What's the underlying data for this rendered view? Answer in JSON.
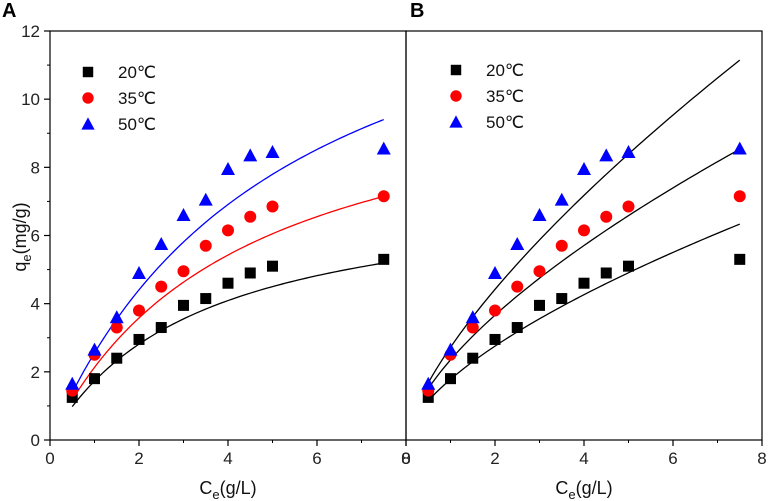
{
  "chart_data": [
    {
      "type": "scatter",
      "panel_label": "A",
      "xlabel": {
        "main": "C",
        "sub": "e",
        "rest": "(g/L)"
      },
      "ylabel": {
        "main": "q",
        "sub": "e",
        "rest": "(mg/g)"
      },
      "xlim": [
        0,
        8
      ],
      "ylim": [
        0,
        12
      ],
      "x_ticks": [
        "0",
        "2",
        "4",
        "6",
        "8"
      ],
      "y_ticks": [
        "0",
        "2",
        "4",
        "6",
        "8",
        "10",
        "12"
      ],
      "legend_position": "top-left",
      "series": [
        {
          "name": "20℃",
          "marker": "square",
          "color": "#000000",
          "fit_color": "#000000",
          "x": [
            0.5,
            1.0,
            1.5,
            2.0,
            2.5,
            3.0,
            3.5,
            4.0,
            4.5,
            5.0,
            7.5
          ],
          "y": [
            1.25,
            1.8,
            2.4,
            2.95,
            3.3,
            3.95,
            4.15,
            4.6,
            4.9,
            5.1,
            5.3
          ],
          "fit": {
            "model": "langmuir",
            "qm": 7.5,
            "k": 0.3
          }
        },
        {
          "name": "35℃",
          "marker": "circle",
          "color": "#ff0000",
          "fit_color": "#ff0000",
          "x": [
            0.5,
            1.0,
            1.5,
            2.0,
            2.5,
            3.0,
            3.5,
            4.0,
            4.5,
            5.0,
            7.5
          ],
          "y": [
            1.45,
            2.5,
            3.3,
            3.8,
            4.5,
            4.95,
            5.7,
            6.15,
            6.55,
            6.85,
            7.15
          ],
          "fit": {
            "model": "langmuir",
            "qm": 11.2,
            "k": 0.235
          }
        },
        {
          "name": "50℃",
          "marker": "triangle",
          "color": "#0000ff",
          "fit_color": "#0000ff",
          "x": [
            0.5,
            1.0,
            1.5,
            2.0,
            2.5,
            3.0,
            3.5,
            4.0,
            4.5,
            5.0,
            7.5
          ],
          "y": [
            1.65,
            2.65,
            3.6,
            4.9,
            5.75,
            6.6,
            7.05,
            7.95,
            8.35,
            8.45,
            8.55
          ],
          "fit": {
            "model": "langmuir",
            "qm": 16.0,
            "k": 0.19
          }
        }
      ]
    },
    {
      "type": "scatter",
      "panel_label": "B",
      "xlabel": {
        "main": "C",
        "sub": "e",
        "rest": "(g/L)"
      },
      "xlim": [
        0,
        8
      ],
      "ylim": [
        0,
        12
      ],
      "x_ticks": [
        "0",
        "2",
        "4",
        "6",
        "8"
      ],
      "legend_position": "top-left",
      "series": [
        {
          "name": "20℃",
          "marker": "square",
          "color": "#000000",
          "fit_color": "#000000",
          "x": [
            0.5,
            1.0,
            1.5,
            2.0,
            2.5,
            3.0,
            3.5,
            4.0,
            4.5,
            5.0,
            7.5
          ],
          "y": [
            1.25,
            1.8,
            2.4,
            2.95,
            3.3,
            3.95,
            4.15,
            4.6,
            4.9,
            5.1,
            5.3
          ],
          "fit": {
            "model": "freundlich",
            "kf": 1.78,
            "n": 0.63
          }
        },
        {
          "name": "35℃",
          "marker": "circle",
          "color": "#ff0000",
          "fit_color": "#000000",
          "x": [
            0.5,
            1.0,
            1.5,
            2.0,
            2.5,
            3.0,
            3.5,
            4.0,
            4.5,
            5.0,
            7.5
          ],
          "y": [
            1.45,
            2.5,
            3.3,
            3.8,
            4.5,
            4.95,
            5.7,
            6.15,
            6.55,
            6.85,
            7.15
          ],
          "fit": {
            "model": "freundlich",
            "kf": 2.35,
            "n": 0.64
          }
        },
        {
          "name": "50℃",
          "marker": "triangle",
          "color": "#0000ff",
          "fit_color": "#000000",
          "x": [
            0.5,
            1.0,
            1.5,
            2.0,
            2.5,
            3.0,
            3.5,
            4.0,
            4.5,
            5.0,
            7.5
          ],
          "y": [
            1.65,
            2.65,
            3.6,
            4.9,
            5.75,
            6.6,
            7.05,
            7.95,
            8.35,
            8.45,
            8.55
          ],
          "fit": {
            "model": "freundlich",
            "kf": 2.72,
            "n": 0.7
          }
        }
      ]
    }
  ]
}
